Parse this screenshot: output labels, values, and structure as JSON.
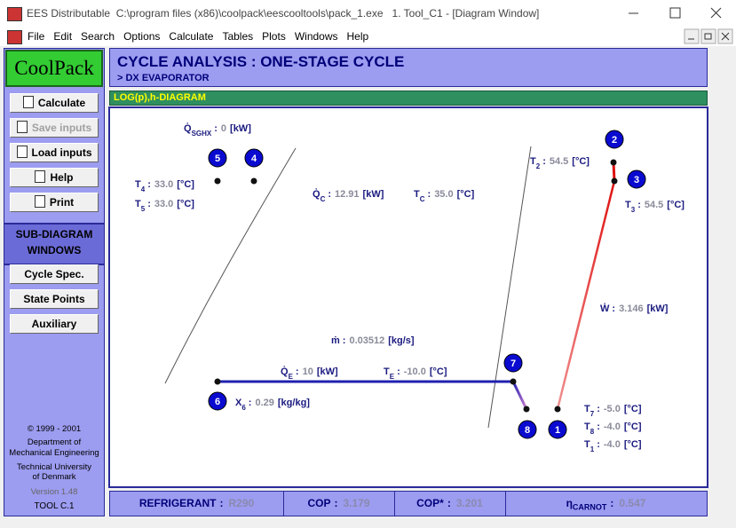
{
  "window": {
    "title": "EES Distributable  C:\\program files (x86)\\coolpack\\eescooltools\\pack_1.exe   1. Tool_C1 - [Diagram Window]"
  },
  "menu": [
    "File",
    "Edit",
    "Search",
    "Options",
    "Calculate",
    "Tables",
    "Plots",
    "Windows",
    "Help"
  ],
  "sidebar": {
    "logo": "CoolPack",
    "buttons": [
      "Calculate",
      "Save inputs",
      "Load inputs",
      "Help",
      "Print"
    ],
    "section": [
      "SUB-DIAGRAM",
      "WINDOWS"
    ],
    "sub_buttons": [
      "Cycle Spec.",
      "State Points",
      "Auxiliary"
    ],
    "footer": [
      "© 1999 - 2001",
      "Department of",
      "Mechanical Engineering",
      "Technical University",
      "of Denmark",
      "Version 1.48",
      "TOOL C.1"
    ]
  },
  "header": {
    "title": "CYCLE ANALYSIS : ONE-STAGE CYCLE",
    "subtitle": "> DX EVAPORATOR",
    "diagram_label": "LOG(p),h-DIAGRAM"
  },
  "diagram": {
    "quantities": [
      {
        "symbol": "Q̇",
        "sub": "SGHX",
        "sep": ":",
        "value": "0",
        "unit": "[kW]"
      },
      {
        "symbol": "T",
        "sub": "4",
        "sep": ":",
        "value": "33.0",
        "unit": "[°C]"
      },
      {
        "symbol": "T",
        "sub": "5",
        "sep": ":",
        "value": "33.0",
        "unit": "[°C]"
      },
      {
        "symbol": "Q̇",
        "sub": "C",
        "sep": ":",
        "value": "12.91",
        "unit": "[kW]"
      },
      {
        "symbol": "T",
        "sub": "C",
        "sep": ":",
        "value": "35.0",
        "unit": "[°C]"
      },
      {
        "symbol": "T",
        "sub": "2",
        "sep": ":",
        "value": "54.5",
        "unit": "[°C]"
      },
      {
        "symbol": "T",
        "sub": "3",
        "sep": ":",
        "value": "54.5",
        "unit": "[°C]"
      },
      {
        "symbol": "Ẇ",
        "sep": ":",
        "value": "3.146",
        "unit": "[kW]"
      },
      {
        "symbol": "ṁ",
        "sep": ":",
        "value": "0.03512",
        "unit": "[kg/s]"
      },
      {
        "symbol": "Q̇",
        "sub": "E",
        "sep": ":",
        "value": "10",
        "unit": "[kW]"
      },
      {
        "symbol": "T",
        "sub": "E",
        "sep": ":",
        "value": "-10.0",
        "unit": "[°C]"
      },
      {
        "symbol": "X",
        "sub": "6",
        "sep": ":",
        "value": "0.29",
        "unit": "[kg/kg]"
      },
      {
        "symbol": "T",
        "sub": "7",
        "sep": ":",
        "value": "-5.0",
        "unit": "[°C]"
      },
      {
        "symbol": "T",
        "sub": "8",
        "sep": ":",
        "value": "-4.0",
        "unit": "[°C]"
      },
      {
        "symbol": "T",
        "sub": "1",
        "sep": ":",
        "value": "-4.0",
        "unit": "[°C]"
      }
    ],
    "points": [
      "1",
      "2",
      "3",
      "4",
      "5",
      "6",
      "7",
      "8"
    ]
  },
  "results": [
    {
      "label": "REFRIGERANT",
      "sep": ":",
      "value": "R290"
    },
    {
      "label": "COP",
      "sep": ":",
      "value": "3.179"
    },
    {
      "label": "COP*",
      "sep": ":",
      "value": "3.201"
    },
    {
      "label": "η",
      "sub": "CARNOT",
      "sep": ":",
      "value": "0.547"
    }
  ]
}
